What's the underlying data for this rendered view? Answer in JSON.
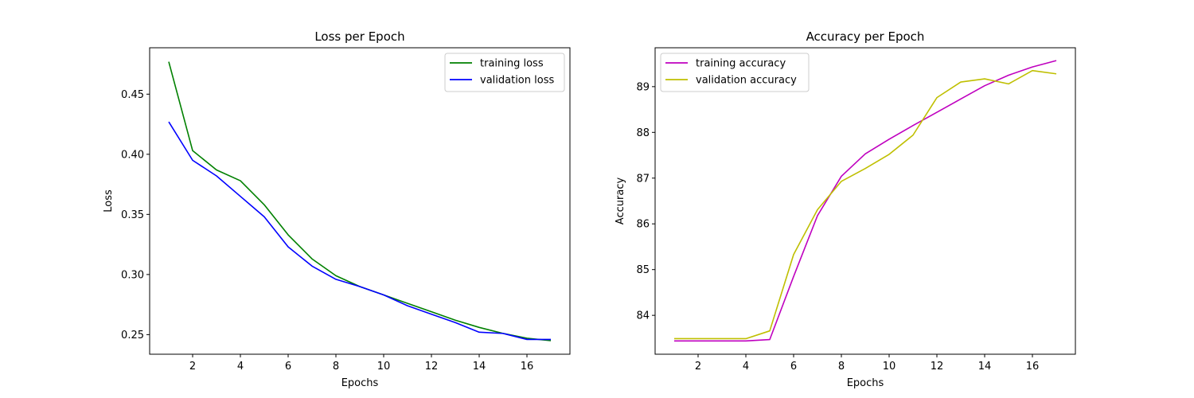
{
  "chart_data": [
    {
      "type": "line",
      "title": "Loss per Epoch",
      "xlabel": "Epochs",
      "ylabel": "Loss",
      "xlim": [
        0.2,
        17.8
      ],
      "ylim": [
        0.2337,
        0.4886
      ],
      "xticks": [
        2,
        4,
        6,
        8,
        10,
        12,
        14,
        16
      ],
      "yticks": [
        0.25,
        0.3,
        0.35,
        0.4,
        0.45
      ],
      "ytick_labels": [
        "0.25",
        "0.30",
        "0.35",
        "0.40",
        "0.45"
      ],
      "legend_position": "upper right",
      "grid": false,
      "x": [
        1,
        2,
        3,
        4,
        5,
        6,
        7,
        8,
        9,
        10,
        11,
        12,
        13,
        14,
        15,
        16,
        17
      ],
      "series": [
        {
          "name": "training loss",
          "color": "#008000",
          "values": [
            0.477,
            0.403,
            0.387,
            0.378,
            0.358,
            0.333,
            0.313,
            0.299,
            0.29,
            0.283,
            0.276,
            0.269,
            0.262,
            0.256,
            0.251,
            0.247,
            0.245
          ]
        },
        {
          "name": "validation loss",
          "color": "#0000ff",
          "values": [
            0.427,
            0.395,
            0.382,
            0.365,
            0.348,
            0.323,
            0.307,
            0.296,
            0.29,
            0.283,
            0.274,
            0.267,
            0.26,
            0.252,
            0.251,
            0.246,
            0.246
          ]
        }
      ]
    },
    {
      "type": "line",
      "title": "Accuracy per Epoch",
      "xlabel": "Epochs",
      "ylabel": "Accuracy",
      "xlim": [
        0.2,
        17.8
      ],
      "ylim": [
        83.15,
        89.85
      ],
      "xticks": [
        2,
        4,
        6,
        8,
        10,
        12,
        14,
        16
      ],
      "yticks": [
        84,
        85,
        86,
        87,
        88,
        89
      ],
      "ytick_labels": [
        "84",
        "85",
        "86",
        "87",
        "88",
        "89"
      ],
      "legend_position": "upper left",
      "grid": false,
      "x": [
        1,
        2,
        3,
        4,
        5,
        6,
        7,
        8,
        9,
        10,
        11,
        12,
        13,
        14,
        15,
        16,
        17
      ],
      "series": [
        {
          "name": "training accuracy",
          "color": "#bf00bf",
          "values": [
            83.44,
            83.44,
            83.44,
            83.44,
            83.47,
            84.85,
            86.18,
            87.04,
            87.53,
            87.85,
            88.15,
            88.44,
            88.73,
            89.02,
            89.25,
            89.43,
            89.57
          ]
        },
        {
          "name": "validation accuracy",
          "color": "#bfbf00",
          "values": [
            83.49,
            83.49,
            83.49,
            83.49,
            83.66,
            85.33,
            86.31,
            86.93,
            87.21,
            87.52,
            87.94,
            88.76,
            89.1,
            89.17,
            89.06,
            89.35,
            89.28
          ]
        }
      ]
    }
  ]
}
